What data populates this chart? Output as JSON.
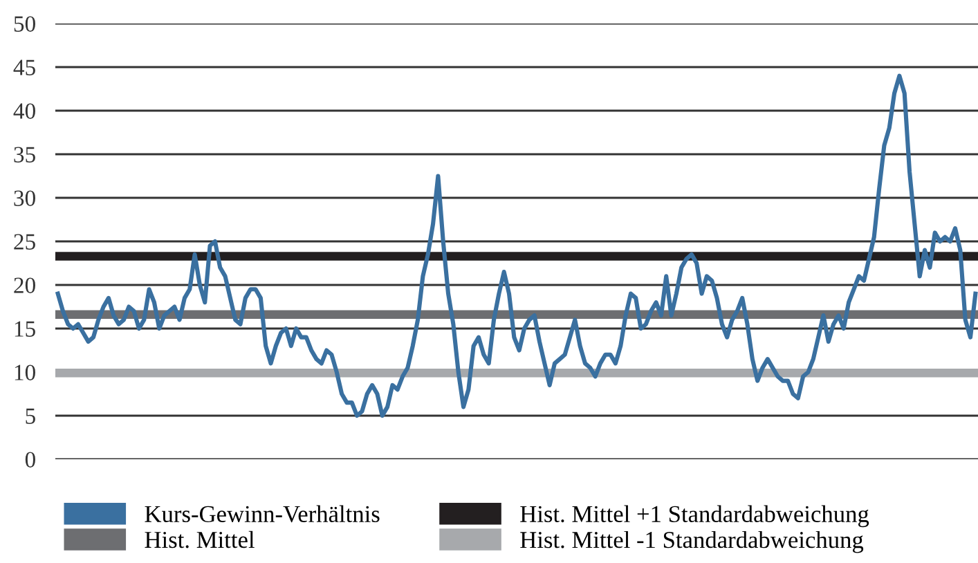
{
  "chart_data": {
    "type": "line",
    "categories": [
      null,
      null,
      null,
      null,
      null,
      null,
      null,
      null,
      null,
      null,
      null,
      null,
      null,
      null,
      null,
      null,
      null,
      null,
      null,
      null,
      null,
      null,
      null,
      null,
      null,
      null,
      null,
      null,
      null,
      null,
      null,
      null,
      null,
      null,
      null,
      null,
      null,
      null,
      null,
      null,
      null,
      null,
      null,
      null,
      null,
      null,
      null,
      null,
      null,
      null,
      null,
      null,
      null,
      null,
      null,
      null,
      null,
      null,
      null,
      null,
      null,
      null,
      null,
      null,
      null,
      null,
      null,
      null,
      null,
      null,
      null,
      null,
      null,
      null,
      null,
      null,
      null,
      null,
      null,
      null,
      null,
      null,
      null,
      null,
      null,
      null,
      null,
      null,
      null,
      null,
      null,
      null,
      null,
      null,
      null,
      null,
      null,
      null,
      null,
      null,
      null,
      null,
      null,
      null,
      null,
      null,
      null,
      null,
      null,
      null,
      null,
      null,
      null,
      null,
      null,
      null,
      null,
      null,
      null,
      null,
      null,
      null,
      null,
      null,
      null,
      null,
      null,
      null,
      null,
      null,
      null,
      null,
      null,
      null,
      null,
      null,
      null,
      null,
      null,
      null,
      null,
      null,
      null,
      null,
      null,
      null,
      null,
      null,
      null,
      null,
      null,
      null,
      null,
      null,
      null,
      null,
      null,
      null,
      null,
      null,
      null,
      null,
      null,
      null,
      null,
      null,
      null,
      null,
      null,
      null,
      null,
      null,
      null,
      null,
      null,
      null,
      null,
      null,
      null,
      null,
      null,
      null
    ],
    "series": [
      {
        "name": "Kurs-Gewinn-Verhältnis",
        "color": "#3a70a0",
        "values": [
          19,
          17,
          15.5,
          15,
          15.5,
          14.5,
          13.5,
          14,
          16,
          17.5,
          18.5,
          16.5,
          15.5,
          16,
          17.5,
          17,
          15,
          16,
          19.5,
          18,
          15,
          16.5,
          17,
          17.5,
          16,
          18.5,
          19.5,
          23.5,
          20,
          18,
          24.5,
          25,
          22,
          21,
          18.5,
          16,
          15.5,
          18.5,
          19.5,
          19.5,
          18.5,
          13,
          11,
          13,
          14.5,
          15,
          13,
          15,
          14,
          14,
          12.5,
          11.5,
          11,
          12.5,
          12,
          10,
          7.5,
          6.5,
          6.5,
          5,
          5.5,
          7.5,
          8.5,
          7.5,
          5,
          6,
          8.5,
          8,
          9.5,
          10.5,
          13,
          16,
          21,
          23.5,
          27,
          32.5,
          25,
          19,
          15.5,
          10,
          6,
          8,
          13,
          14,
          12,
          11,
          16,
          19,
          21.5,
          19,
          14,
          12.5,
          15,
          16,
          16.5,
          13.5,
          11,
          8.5,
          11,
          11.5,
          12,
          14,
          16,
          13,
          11,
          10.5,
          9.5,
          11,
          12,
          12,
          11,
          13,
          16.5,
          19,
          18.5,
          15,
          15.5,
          17,
          18,
          16.5,
          21,
          16.5,
          19,
          22,
          23,
          23.5,
          22.5,
          19,
          21,
          20.5,
          18.5,
          15.5,
          14,
          16,
          17,
          18.5,
          15.5,
          11.5,
          9,
          10.5,
          11.5,
          10.5,
          9.5,
          9,
          9,
          7.5,
          7,
          9.5,
          10,
          11.5,
          14,
          16.5,
          13.5,
          15.5,
          16.5,
          15,
          18,
          19.5,
          21,
          20.5,
          23,
          25.5,
          31,
          36,
          38,
          42,
          44,
          42,
          33,
          27,
          21,
          24,
          22,
          26,
          25,
          25.5,
          25,
          26.5,
          24,
          16,
          14,
          19
        ]
      }
    ],
    "ref_lines": [
      {
        "axis": "y",
        "value": 23.3,
        "label": "Hist. Mittel +1 Standardabweichung",
        "color": "#231f20"
      },
      {
        "axis": "y",
        "value": 16.6,
        "label": "Hist. Mittel",
        "color": "#6d6e71"
      },
      {
        "axis": "y",
        "value": 9.9,
        "label": "Hist. Mittel -1 Standardabweichung",
        "color": "#a7a9ac"
      }
    ],
    "ylim": [
      0,
      50
    ],
    "yticks": [
      0,
      5,
      10,
      15,
      20,
      25,
      30,
      35,
      40,
      45,
      50
    ],
    "grid": "y",
    "legend": "bottom"
  }
}
